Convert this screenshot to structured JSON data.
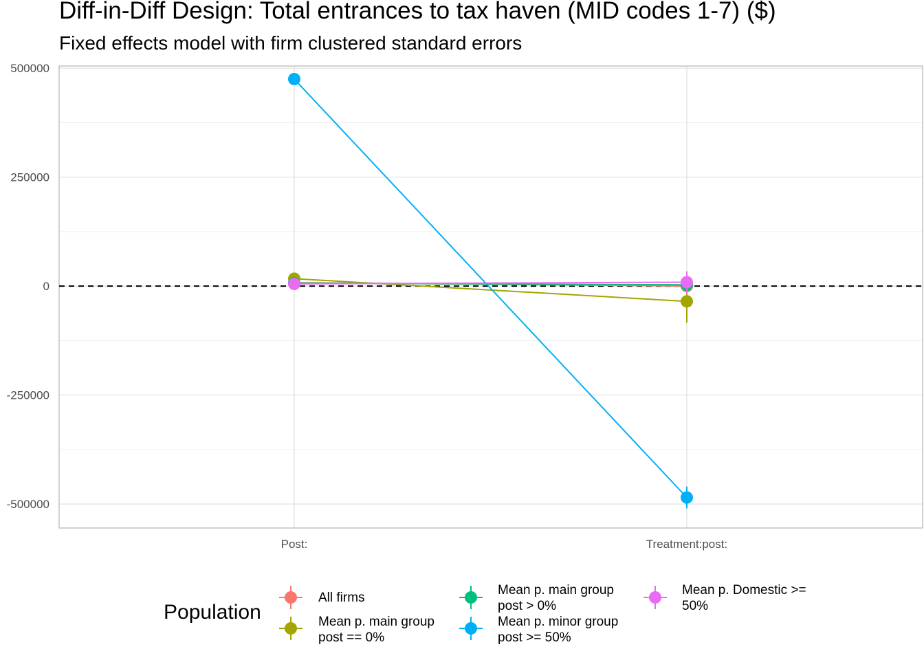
{
  "chart_data": {
    "type": "scatter",
    "title": "Diff-in-Diff Design: Total entrances to tax haven (MID codes 1-7)  ($)",
    "subtitle": "Fixed effects model with firm clustered standard errors",
    "categories": [
      "Post:",
      "Treatment:post:"
    ],
    "y_ticks": [
      500000,
      250000,
      0,
      -250000,
      -500000
    ],
    "y_tick_labels": [
      "500000",
      "250000",
      "0",
      "-250000",
      "-500000"
    ],
    "ylim": [
      -555000,
      505000
    ],
    "reference_line": 0,
    "grid": true,
    "legend_title": "Population",
    "legend_position": "bottom",
    "series": [
      {
        "name": "All firms",
        "color": "#F8766D",
        "values": [
          8000,
          0
        ],
        "ci_low": [
          4000,
          -6000
        ],
        "ci_high": [
          12000,
          6000
        ]
      },
      {
        "name": "Mean p. main group\npost == 0%",
        "color": "#A3A500",
        "values": [
          17000,
          -35000
        ],
        "ci_low": [
          5000,
          -84000
        ],
        "ci_high": [
          29000,
          14000
        ]
      },
      {
        "name": "Mean p. main group\npost > 0%",
        "color": "#00BF7D",
        "values": [
          7000,
          3000
        ],
        "ci_low": [
          3000,
          -4000
        ],
        "ci_high": [
          11000,
          10000
        ]
      },
      {
        "name": "Mean p. minor group\npost >= 50%",
        "color": "#00B0F6",
        "values": [
          475000,
          -485000
        ],
        "ci_low": [
          470000,
          -510000
        ],
        "ci_high": [
          480000,
          -460000
        ]
      },
      {
        "name": "Mean p. Domestic >=\n50%",
        "color": "#E76BF3",
        "values": [
          5000,
          9000
        ],
        "ci_low": [
          1000,
          -16000
        ],
        "ci_high": [
          9000,
          34000
        ]
      }
    ]
  }
}
